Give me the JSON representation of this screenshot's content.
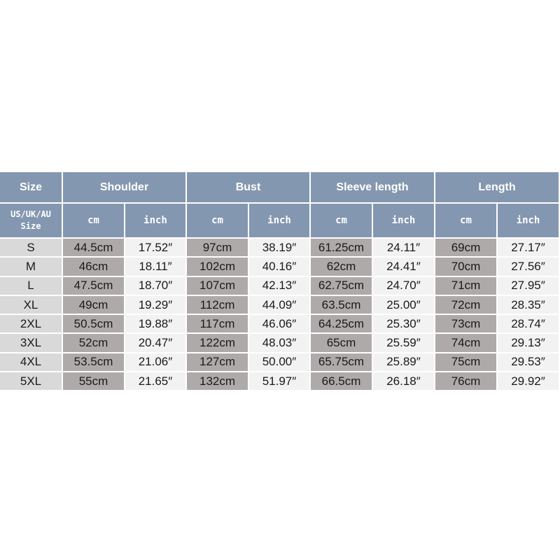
{
  "header": {
    "size": "Size",
    "groups": [
      "Shoulder",
      "Bust",
      "Sleeve length",
      "Length"
    ],
    "size_sub_line1": "US/UK/AU",
    "size_sub_line2": "Size",
    "units": [
      "cm",
      "inch"
    ]
  },
  "colors": {
    "header": "#8497b0",
    "size_column": "#d9d9d9",
    "cm_column": "#aeaaaa",
    "inch_column": "#f2f2f2"
  },
  "rows": [
    [
      "S",
      "44.5cm",
      "17.52″",
      "97cm",
      "38.19″",
      "61.25cm",
      "24.11″",
      "69cm",
      "27.17″"
    ],
    [
      "M",
      "46cm",
      "18.11″",
      "102cm",
      "40.16″",
      "62cm",
      "24.41″",
      "70cm",
      "27.56″"
    ],
    [
      "L",
      "47.5cm",
      "18.70″",
      "107cm",
      "42.13″",
      "62.75cm",
      "24.70″",
      "71cm",
      "27.95″"
    ],
    [
      "XL",
      "49cm",
      "19.29″",
      "112cm",
      "44.09″",
      "63.5cm",
      "25.00″",
      "72cm",
      "28.35″"
    ],
    [
      "2XL",
      "50.5cm",
      "19.88″",
      "117cm",
      "46.06″",
      "64.25cm",
      "25.30″",
      "73cm",
      "28.74″"
    ],
    [
      "3XL",
      "52cm",
      "20.47″",
      "122cm",
      "48.03″",
      "65cm",
      "25.59″",
      "74cm",
      "29.13″"
    ],
    [
      "4XL",
      "53.5cm",
      "21.06″",
      "127cm",
      "50.00″",
      "65.75cm",
      "25.89″",
      "75cm",
      "29.53″"
    ],
    [
      "5XL",
      "55cm",
      "21.65″",
      "132cm",
      "51.97″",
      "66.5cm",
      "26.18″",
      "76cm",
      "29.92″"
    ]
  ]
}
